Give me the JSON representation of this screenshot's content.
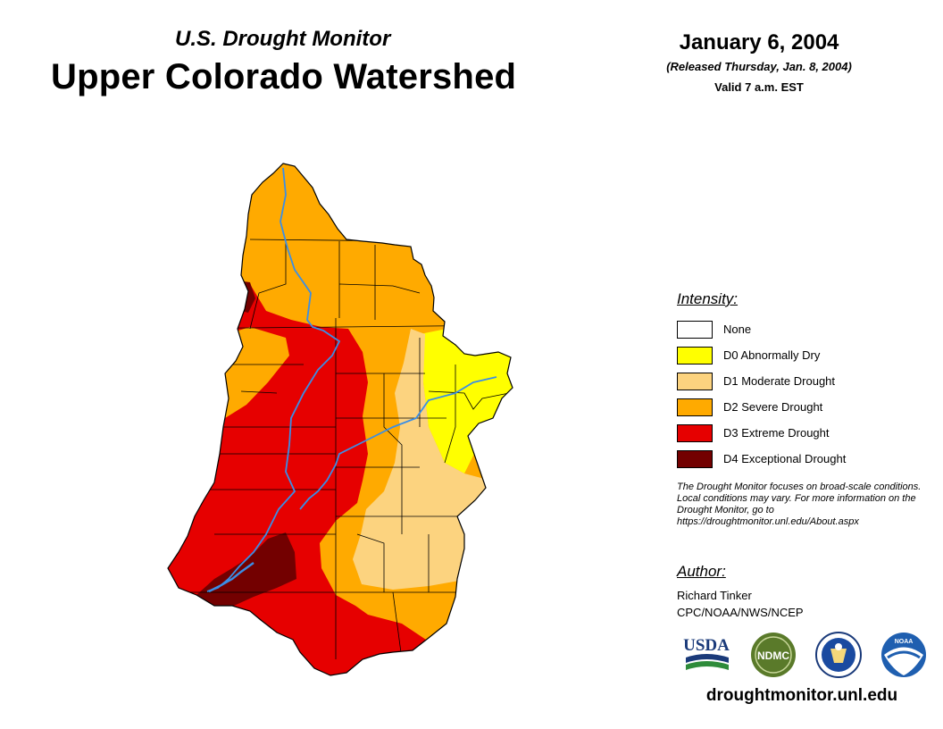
{
  "header": {
    "subtitle": "U.S. Drought Monitor",
    "title": "Upper Colorado Watershed",
    "date": "January 6, 2004",
    "released": "(Released Thursday, Jan. 8, 2004)",
    "valid": "Valid 7 a.m. EST"
  },
  "legend": {
    "heading": "Intensity:",
    "items": [
      {
        "label": "None",
        "color": "#ffffff"
      },
      {
        "label": "D0 Abnormally Dry",
        "color": "#ffff00"
      },
      {
        "label": "D1 Moderate Drought",
        "color": "#fcd37f"
      },
      {
        "label": "D2 Severe Drought",
        "color": "#ffaa00"
      },
      {
        "label": "D3 Extreme Drought",
        "color": "#e60000"
      },
      {
        "label": "D4 Exceptional Drought",
        "color": "#730000"
      }
    ]
  },
  "note": "The Drought Monitor focuses on broad-scale conditions. Local conditions may vary. For more information on the Drought Monitor, go to https://droughtmonitor.unl.edu/About.aspx",
  "author": {
    "heading": "Author:",
    "name": "Richard Tinker",
    "org": "CPC/NOAA/NWS/NCEP"
  },
  "logos": [
    {
      "name": "usda-logo",
      "text": "USDA"
    },
    {
      "name": "ndmc-logo",
      "text": "NDMC"
    },
    {
      "name": "doc-seal-logo",
      "text": ""
    },
    {
      "name": "noaa-logo",
      "text": "NOAA"
    }
  ],
  "url": "droughtmonitor.unl.edu",
  "colors": {
    "river": "#3a8ee6",
    "boundary": "#000000"
  }
}
